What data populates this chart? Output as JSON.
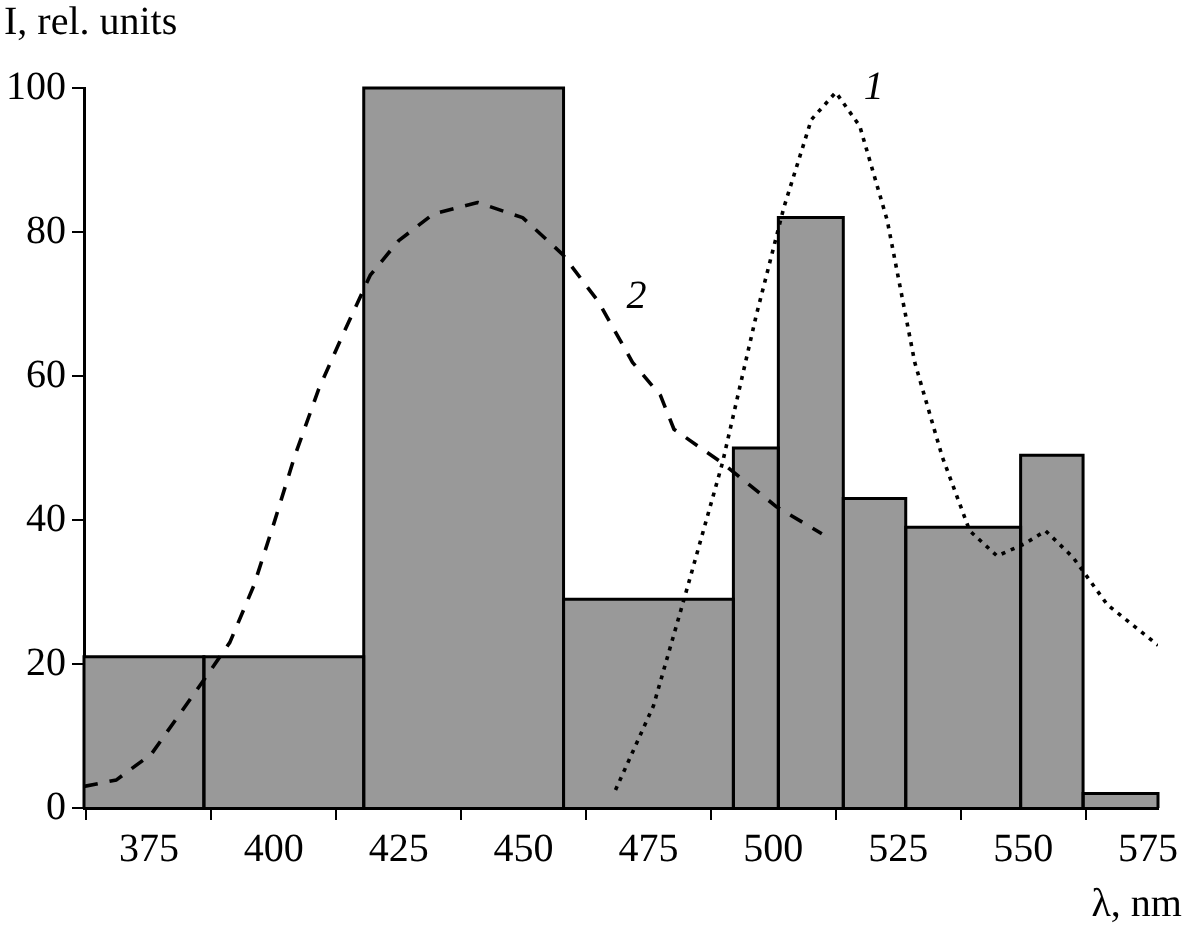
{
  "chart_data": {
    "type": "histogram",
    "xlabel": "λ, nm",
    "ylabel": "I, rel. units",
    "bins": [
      362,
      386,
      418,
      458,
      492,
      501,
      514,
      526.5,
      549.5,
      562,
      577
    ],
    "values": [
      21,
      21,
      100,
      29,
      50,
      82,
      43,
      39,
      49,
      2
    ],
    "color": "#999999",
    "series": [
      {
        "type": "line",
        "line_style": "dotted",
        "color": "#000000",
        "x": [
          468.4,
          476,
          482.9,
          489.8,
          496.6,
          502.1,
          507.6,
          512.5,
          517.3,
          522.8,
          528.3,
          533.8,
          539.3,
          544.8,
          550.3,
          554.5,
          560,
          566.9,
          577
        ],
        "values": [
          2.5,
          14.2,
          30.9,
          47.9,
          68.5,
          83.4,
          95.6,
          99.4,
          94.7,
          81.6,
          61.9,
          48.8,
          38.5,
          35,
          36.7,
          38.5,
          34.8,
          28.2,
          22.6
        ]
      },
      {
        "type": "line",
        "line_style": "dashed",
        "color": "#000000",
        "x": [
          362,
          368.5,
          375.5,
          385.7,
          391.2,
          396,
          400,
          404.2,
          409,
          413.8,
          419.3,
          425,
          431.9,
          440.8,
          449.8,
          457.8,
          465,
          471.8,
          477.4,
          480.1,
          489.8,
          500.7,
          509.7
        ],
        "values": [
          3,
          3.9,
          7.5,
          17.5,
          23,
          30.9,
          39.5,
          48.9,
          58.2,
          65.7,
          74,
          78.8,
          82.5,
          84.1,
          82,
          76.9,
          70.3,
          61.9,
          57.3,
          52.6,
          47.9,
          41.8,
          38.1
        ]
      }
    ],
    "annotations": [
      {
        "text": "1",
        "x": 512.5,
        "y": 99.4
      },
      {
        "text": "2",
        "x": 465,
        "y": 70.3
      }
    ],
    "xlim": [
      362,
      577
    ],
    "xticks": [
      375,
      400,
      425,
      450,
      475,
      500,
      525,
      550,
      575
    ],
    "ylim": [
      0,
      100
    ],
    "yticks": [
      0,
      20,
      40,
      60,
      80,
      100
    ]
  }
}
